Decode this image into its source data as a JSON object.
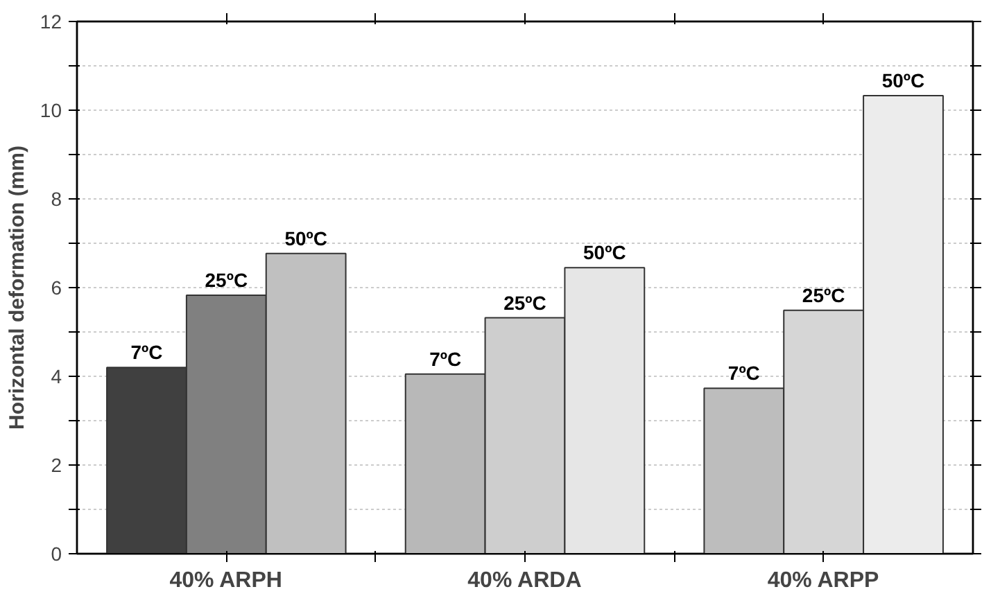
{
  "chart_data": {
    "type": "bar",
    "ylabel": "Horizontal deformation (mm)",
    "categories": [
      "40% ARPH",
      "40% ARDA",
      "40% ARPP"
    ],
    "series": [
      {
        "name": "7ºC",
        "colors": [
          "#404040",
          "#b8b8b8",
          "#bdbdbd"
        ],
        "values": [
          4.2,
          4.05,
          3.73
        ]
      },
      {
        "name": "25ºC",
        "colors": [
          "#808080",
          "#cecece",
          "#d6d6d6"
        ],
        "values": [
          5.83,
          5.32,
          5.49
        ]
      },
      {
        "name": "50ºC",
        "colors": [
          "#c0c0c0",
          "#e6e6e6",
          "#ececec"
        ],
        "values": [
          6.77,
          6.45,
          10.33
        ]
      }
    ],
    "ylim": [
      0,
      12
    ],
    "yticks": [
      0,
      {
        "value": 1,
        "label": null
      },
      2,
      {
        "value": 3,
        "label": null
      },
      4,
      {
        "value": 5,
        "label": null
      },
      6,
      {
        "value": 7,
        "label": null
      },
      8,
      {
        "value": 9,
        "label": null
      },
      10,
      {
        "value": 11,
        "label": null
      },
      12
    ],
    "grid": "y"
  }
}
